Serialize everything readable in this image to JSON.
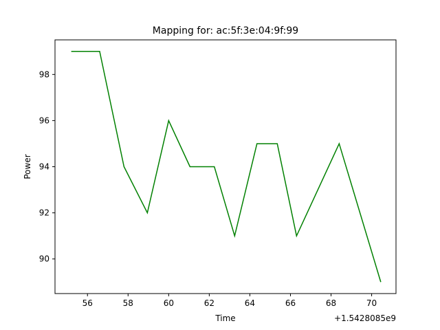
{
  "chart_data": {
    "type": "line",
    "title": "Mapping for: ac:5f:3e:04:9f:99",
    "xlabel": "Time",
    "ylabel": "Power",
    "x_offset_label": "+1.5428085e9",
    "xlim": [
      54.4,
      71.2
    ],
    "ylim": [
      88.5,
      99.5
    ],
    "xticks": [
      56,
      58,
      60,
      62,
      64,
      66,
      68,
      70
    ],
    "yticks": [
      90,
      92,
      94,
      96,
      98
    ],
    "grid": false,
    "legend": "none",
    "series": [
      {
        "color": "#008000",
        "x": [
          55.2,
          56.6,
          57.8,
          58.95,
          60.0,
          61.05,
          62.25,
          63.25,
          64.35,
          65.35,
          66.3,
          68.4,
          70.45
        ],
        "y": [
          99,
          99,
          94,
          92,
          96,
          94,
          94,
          91,
          95,
          95,
          91,
          95,
          89
        ]
      }
    ]
  }
}
